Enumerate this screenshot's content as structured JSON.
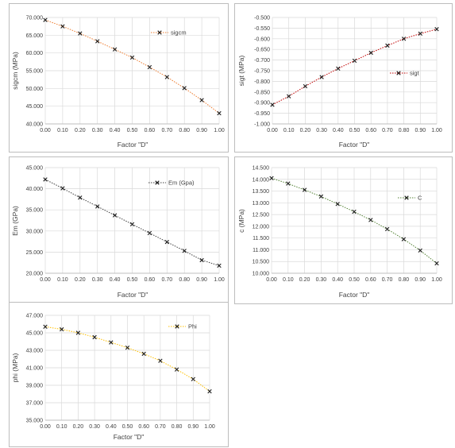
{
  "colors": {
    "grid": "#d9d9d9",
    "axis": "#bfbfbf",
    "marker": "#1f1f1f",
    "text": "#404040"
  },
  "chart_data": [
    {
      "type": "scatter",
      "xlabel": "Factor \"D\"",
      "ylabel": "sigcm (MPa)",
      "xlim": [
        0,
        1
      ],
      "ylim": [
        40,
        70
      ],
      "xticks": [
        "0.00",
        "0.10",
        "0.20",
        "0.30",
        "0.40",
        "0.50",
        "0.60",
        "0.70",
        "0.80",
        "0.90",
        "1.00"
      ],
      "yticks": [
        "40.000",
        "45.000",
        "50.000",
        "55.000",
        "60.000",
        "65.000",
        "70.000"
      ],
      "grid": true,
      "legend": "top-right",
      "series": [
        {
          "name": "sigcm",
          "color": "#ed7d31",
          "x": [
            0,
            0.1,
            0.2,
            0.3,
            0.4,
            0.5,
            0.6,
            0.7,
            0.8,
            0.9,
            1.0
          ],
          "y": [
            69.3,
            67.5,
            65.5,
            63.3,
            61.0,
            58.7,
            56.0,
            53.2,
            50.1,
            46.7,
            43.0
          ]
        }
      ]
    },
    {
      "type": "scatter",
      "xlabel": "Factor \"D\"",
      "ylabel": "sigt (MPa)",
      "xlim": [
        0,
        1
      ],
      "ylim": [
        -1.0,
        -0.5
      ],
      "xticks": [
        "0.00",
        "0.10",
        "0.20",
        "0.30",
        "0.40",
        "0.50",
        "0.60",
        "0.70",
        "0.80",
        "0.90",
        "1.00"
      ],
      "yticks": [
        "-1.000",
        "-0.950",
        "-0.900",
        "-0.850",
        "-0.800",
        "-0.750",
        "-0.700",
        "-0.650",
        "-0.600",
        "-0.550",
        "-0.500"
      ],
      "grid": true,
      "legend": "right",
      "series": [
        {
          "name": "sigt",
          "color": "#c00000",
          "x": [
            0,
            0.1,
            0.2,
            0.3,
            0.4,
            0.5,
            0.6,
            0.7,
            0.8,
            0.9,
            1.0
          ],
          "y": [
            -0.91,
            -0.87,
            -0.823,
            -0.78,
            -0.74,
            -0.703,
            -0.666,
            -0.632,
            -0.6,
            -0.576,
            -0.555
          ]
        }
      ]
    },
    {
      "type": "scatter",
      "xlabel": "Factor \"D\"",
      "ylabel": "Em (GPa)",
      "xlim": [
        0,
        1
      ],
      "ylim": [
        20,
        45
      ],
      "xticks": [
        "0.00",
        "0.10",
        "0.20",
        "0.30",
        "0.40",
        "0.50",
        "0.60",
        "0.70",
        "0.80",
        "0.90",
        "1.00"
      ],
      "yticks": [
        "20.000",
        "25.000",
        "30.000",
        "35.000",
        "40.000",
        "45.000"
      ],
      "grid": true,
      "legend": "top-right",
      "series": [
        {
          "name": "Em (Gpa)",
          "color": "#404040",
          "x": [
            0,
            0.1,
            0.2,
            0.3,
            0.4,
            0.5,
            0.6,
            0.7,
            0.8,
            0.9,
            1.0
          ],
          "y": [
            42.2,
            40.1,
            37.9,
            35.8,
            33.7,
            31.6,
            29.5,
            27.4,
            25.3,
            23.1,
            21.8
          ]
        }
      ]
    },
    {
      "type": "scatter",
      "xlabel": "Factor \"D\"",
      "ylabel": "c (MPa)",
      "xlim": [
        0,
        1
      ],
      "ylim": [
        10,
        14.5
      ],
      "xticks": [
        "0.00",
        "0.10",
        "0.20",
        "0.30",
        "0.40",
        "0.50",
        "0.60",
        "0.70",
        "0.80",
        "0.90",
        "1.00"
      ],
      "yticks": [
        "10.000",
        "10.500",
        "11.000",
        "11.500",
        "12.000",
        "12.500",
        "13.000",
        "13.500",
        "14.000",
        "14.500"
      ],
      "grid": true,
      "legend": "right",
      "series": [
        {
          "name": "C",
          "color": "#548235",
          "x": [
            0,
            0.1,
            0.2,
            0.3,
            0.4,
            0.5,
            0.6,
            0.7,
            0.8,
            0.9,
            1.0
          ],
          "y": [
            14.05,
            13.82,
            13.55,
            13.27,
            12.95,
            12.62,
            12.27,
            11.88,
            11.45,
            10.97,
            10.42
          ]
        }
      ]
    },
    {
      "type": "scatter",
      "xlabel": "Factor \"D\"",
      "ylabel": "phi (MPa)",
      "xlim": [
        0,
        1
      ],
      "ylim": [
        35,
        47
      ],
      "xticks": [
        "0.00",
        "0.10",
        "0.20",
        "0.30",
        "0.40",
        "0.50",
        "0.60",
        "0.70",
        "0.80",
        "0.90",
        "1.00"
      ],
      "yticks": [
        "35.000",
        "37.000",
        "39.000",
        "41.000",
        "43.000",
        "45.000",
        "47.000"
      ],
      "grid": true,
      "legend": "top-right",
      "series": [
        {
          "name": "Phi",
          "color": "#ffc000",
          "x": [
            0,
            0.1,
            0.2,
            0.3,
            0.4,
            0.5,
            0.6,
            0.7,
            0.8,
            0.9,
            1.0
          ],
          "y": [
            45.7,
            45.4,
            45.0,
            44.5,
            43.9,
            43.3,
            42.6,
            41.8,
            40.8,
            39.7,
            38.3
          ]
        }
      ]
    }
  ]
}
